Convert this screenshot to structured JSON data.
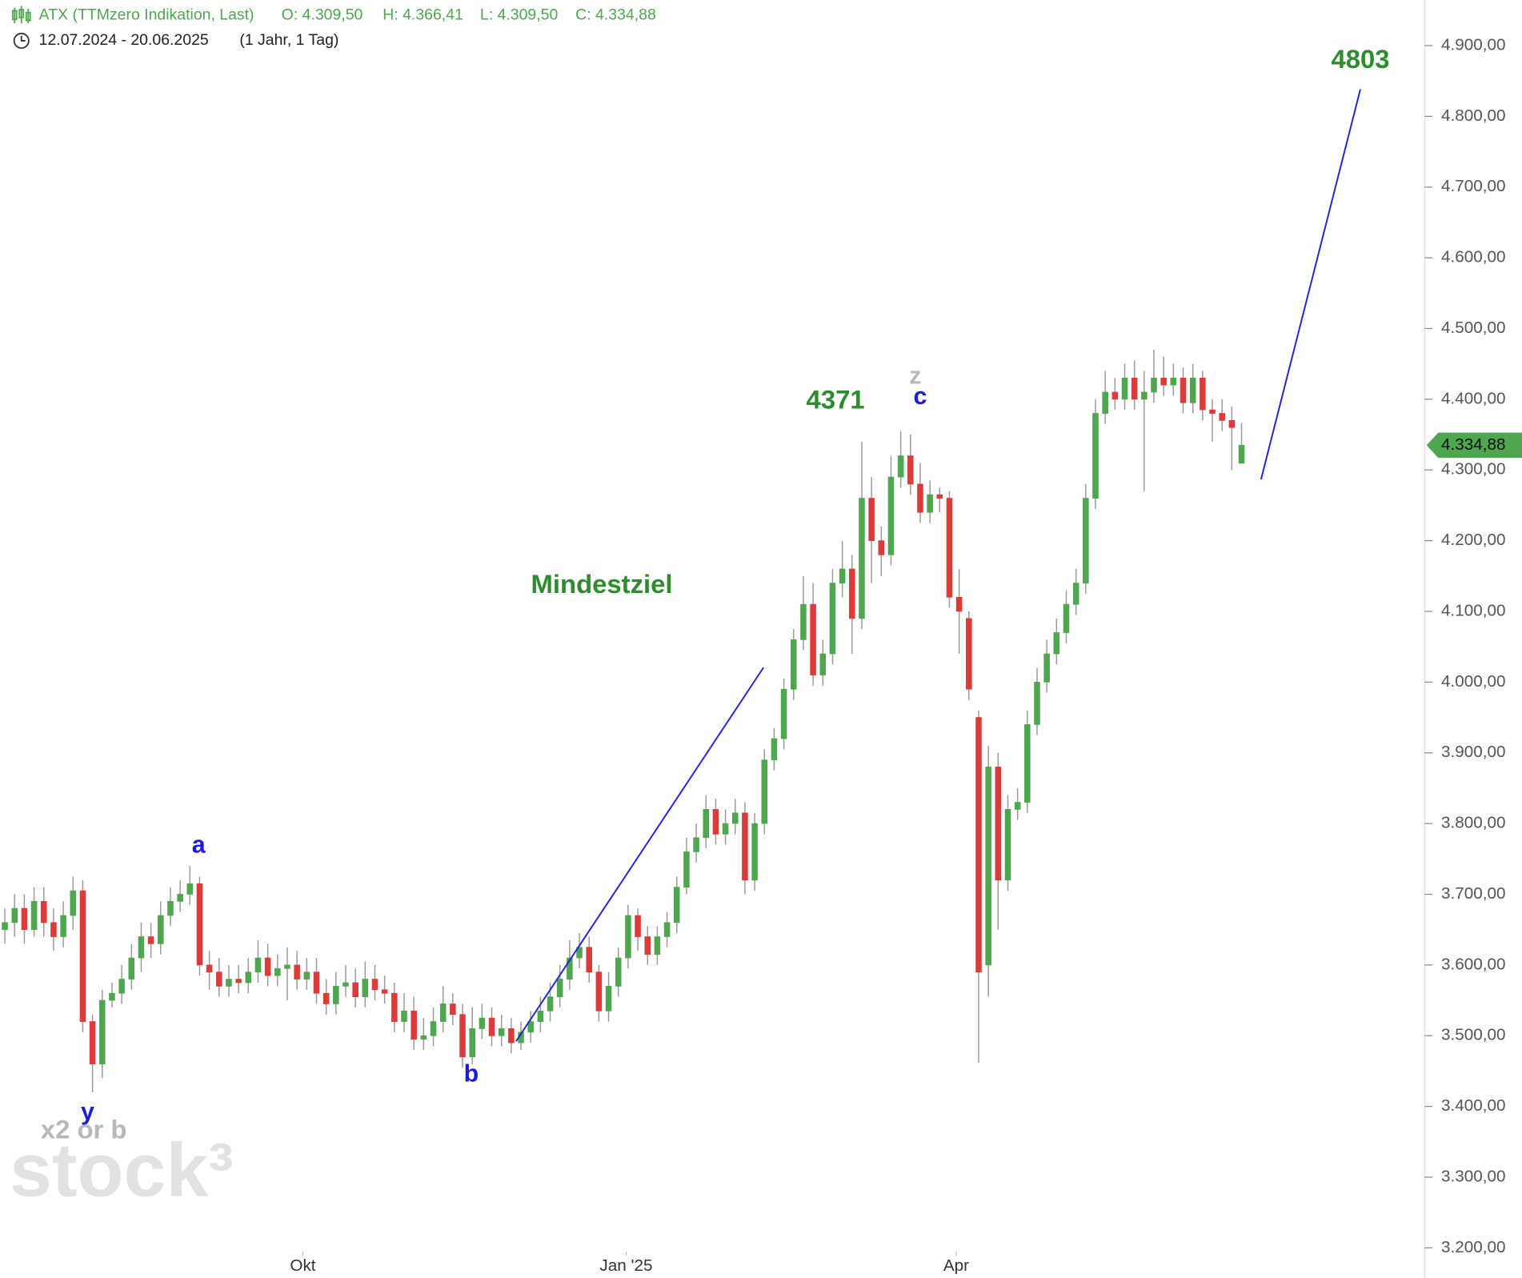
{
  "chart_data": {
    "type": "candlestick",
    "title": "ATX (TTMzero Indikation, Last)",
    "ohlc_labels": [
      "O: 4.309,50",
      "H: 4.366,41",
      "L: 4.309,50",
      "C: 4.334,88"
    ],
    "subtitle": "12.07.2024 - 20.06.2025",
    "period": "(1 Jahr, 1 Tag)",
    "up_color": "#4ea64e",
    "down_color": "#dd3a3a",
    "xlim": [
      -0.5,
      145.8
    ],
    "ylim": [
      3157.4,
      4964.5
    ],
    "xticks": [
      {
        "value": 30.6,
        "label": "Okt"
      },
      {
        "value": 63.8,
        "label": "Jan '25"
      },
      {
        "value": 97.7,
        "label": "Apr"
      }
    ],
    "yticks": [
      {
        "value": 4900,
        "label": "4.900,00"
      },
      {
        "value": 4800,
        "label": "4.800,00"
      },
      {
        "value": 4700,
        "label": "4.700,00"
      },
      {
        "value": 4600,
        "label": "4.600,00"
      },
      {
        "value": 4500,
        "label": "4.500,00"
      },
      {
        "value": 4400,
        "label": "4.400,00"
      },
      {
        "value": 4300,
        "label": "4.300,00"
      },
      {
        "value": 4200,
        "label": "4.200,00"
      },
      {
        "value": 4100,
        "label": "4.100,00"
      },
      {
        "value": 4000,
        "label": "4.000,00"
      },
      {
        "value": 3900,
        "label": "3.900,00"
      },
      {
        "value": 3800,
        "label": "3.800,00"
      },
      {
        "value": 3700,
        "label": "3.700,00"
      },
      {
        "value": 3600,
        "label": "3.600,00"
      },
      {
        "value": 3500,
        "label": "3.500,00"
      },
      {
        "value": 3400,
        "label": "3.400,00"
      },
      {
        "value": 3300,
        "label": "3.300,00"
      },
      {
        "value": 3200,
        "label": "3.200,00"
      }
    ],
    "last_price": {
      "value": 4334.88,
      "label": "4.334,88"
    },
    "annotations": {
      "target": "4803",
      "high": "4371",
      "min_target": "Mindestziel",
      "a": "a",
      "b": "b",
      "c": "c",
      "y": "y",
      "z": "z",
      "x2": "x2 or b"
    },
    "watermark": "stock³",
    "opens": [
      3650,
      3660,
      3680,
      3650,
      3690,
      3660,
      3640,
      3670,
      3705,
      3520,
      3460,
      3550,
      3560,
      3580,
      3610,
      3640,
      3630,
      3670,
      3690,
      3700,
      3715,
      3600,
      3590,
      3570,
      3580,
      3575,
      3590,
      3610,
      3585,
      3595,
      3600,
      3580,
      3590,
      3560,
      3545,
      3570,
      3575,
      3555,
      3580,
      3565,
      3560,
      3520,
      3535,
      3495,
      3500,
      3520,
      3545,
      3530,
      3470,
      3510,
      3525,
      3500,
      3510,
      3490,
      3505,
      3520,
      3535,
      3555,
      3580,
      3610,
      3625,
      3590,
      3535,
      3570,
      3610,
      3670,
      3640,
      3615,
      3640,
      3660,
      3710,
      3760,
      3780,
      3820,
      3785,
      3800,
      3815,
      3720,
      3800,
      3890,
      3920,
      3990,
      4060,
      4110,
      4010,
      4040,
      4140,
      4160,
      4090,
      4260,
      4200,
      4180,
      4290,
      4320,
      4280,
      4240,
      4265,
      4260,
      4120,
      4090,
      3950,
      3600,
      3880,
      3720,
      3820,
      3830,
      3940,
      4000,
      4040,
      4070,
      4110,
      4140,
      4260,
      4380,
      4410,
      4400,
      4430,
      4400,
      4410,
      4430,
      4420,
      4430,
      4395,
      4430,
      4385,
      4380,
      4370,
      4309.5
    ],
    "highs": [
      3680,
      3700,
      3700,
      3710,
      3710,
      3680,
      3690,
      3725,
      3720,
      3530,
      3565,
      3575,
      3600,
      3630,
      3660,
      3660,
      3690,
      3710,
      3720,
      3740,
      3725,
      3620,
      3610,
      3600,
      3600,
      3610,
      3635,
      3630,
      3615,
      3625,
      3620,
      3610,
      3610,
      3580,
      3590,
      3600,
      3595,
      3605,
      3600,
      3585,
      3575,
      3560,
      3555,
      3525,
      3540,
      3570,
      3560,
      3545,
      3540,
      3545,
      3540,
      3530,
      3525,
      3520,
      3535,
      3555,
      3575,
      3600,
      3635,
      3645,
      3640,
      3600,
      3590,
      3625,
      3685,
      3680,
      3655,
      3655,
      3675,
      3725,
      3780,
      3800,
      3840,
      3835,
      3820,
      3835,
      3830,
      3815,
      3905,
      3935,
      4005,
      4075,
      4150,
      4140,
      4060,
      4160,
      4200,
      4180,
      4340,
      4290,
      4220,
      4320,
      4355,
      4350,
      4310,
      4285,
      4275,
      4270,
      4160,
      4100,
      3960,
      3910,
      3900,
      3840,
      3850,
      3960,
      4020,
      4060,
      4090,
      4130,
      4160,
      4280,
      4400,
      4440,
      4430,
      4450,
      4455,
      4440,
      4470,
      4460,
      4450,
      4445,
      4450,
      4440,
      4400,
      4400,
      4390,
      4366.41
    ],
    "lows": [
      3630,
      3640,
      3630,
      3640,
      3640,
      3620,
      3625,
      3650,
      3505,
      3420,
      3440,
      3540,
      3545,
      3565,
      3590,
      3610,
      3615,
      3655,
      3675,
      3685,
      3585,
      3565,
      3555,
      3555,
      3560,
      3560,
      3575,
      3570,
      3570,
      3550,
      3565,
      3565,
      3545,
      3530,
      3530,
      3555,
      3540,
      3540,
      3550,
      3545,
      3505,
      3505,
      3480,
      3480,
      3485,
      3505,
      3515,
      3455,
      3460,
      3495,
      3485,
      3485,
      3475,
      3480,
      3490,
      3505,
      3520,
      3540,
      3565,
      3595,
      3575,
      3520,
      3520,
      3555,
      3595,
      3620,
      3600,
      3600,
      3625,
      3645,
      3700,
      3745,
      3765,
      3770,
      3770,
      3785,
      3700,
      3705,
      3785,
      3875,
      3905,
      3975,
      4045,
      3995,
      3995,
      4025,
      4120,
      4040,
      4075,
      4140,
      4150,
      4165,
      4275,
      4265,
      4225,
      4225,
      4240,
      4105,
      4040,
      3975,
      3462,
      3555,
      3650,
      3705,
      3805,
      3815,
      3925,
      3985,
      4025,
      4055,
      4095,
      4125,
      4245,
      4365,
      4385,
      4385,
      4385,
      4270,
      4395,
      4405,
      4405,
      4380,
      4380,
      4370,
      4340,
      4355,
      4300,
      4309.5
    ],
    "closes": [
      3660,
      3680,
      3650,
      3690,
      3660,
      3640,
      3670,
      3705,
      3520,
      3460,
      3550,
      3560,
      3580,
      3610,
      3640,
      3630,
      3670,
      3690,
      3700,
      3715,
      3600,
      3590,
      3570,
      3580,
      3575,
      3590,
      3610,
      3585,
      3595,
      3600,
      3580,
      3590,
      3560,
      3545,
      3570,
      3575,
      3555,
      3580,
      3565,
      3560,
      3520,
      3535,
      3495,
      3500,
      3520,
      3545,
      3530,
      3470,
      3510,
      3525,
      3500,
      3510,
      3490,
      3505,
      3520,
      3535,
      3555,
      3580,
      3610,
      3625,
      3590,
      3535,
      3570,
      3610,
      3670,
      3640,
      3615,
      3640,
      3660,
      3710,
      3760,
      3780,
      3820,
      3785,
      3800,
      3815,
      3720,
      3800,
      3890,
      3920,
      3990,
      4060,
      4110,
      4010,
      4040,
      4140,
      4160,
      4090,
      4260,
      4200,
      4180,
      4290,
      4320,
      4280,
      4240,
      4265,
      4260,
      4120,
      4100,
      3990,
      3590,
      3880,
      3720,
      3820,
      3830,
      3940,
      4000,
      4040,
      4070,
      4110,
      4140,
      4260,
      4380,
      4410,
      4400,
      4430,
      4400,
      4410,
      4430,
      4420,
      4430,
      4395,
      4430,
      4385,
      4380,
      4370,
      4360,
      4334.88
    ]
  }
}
